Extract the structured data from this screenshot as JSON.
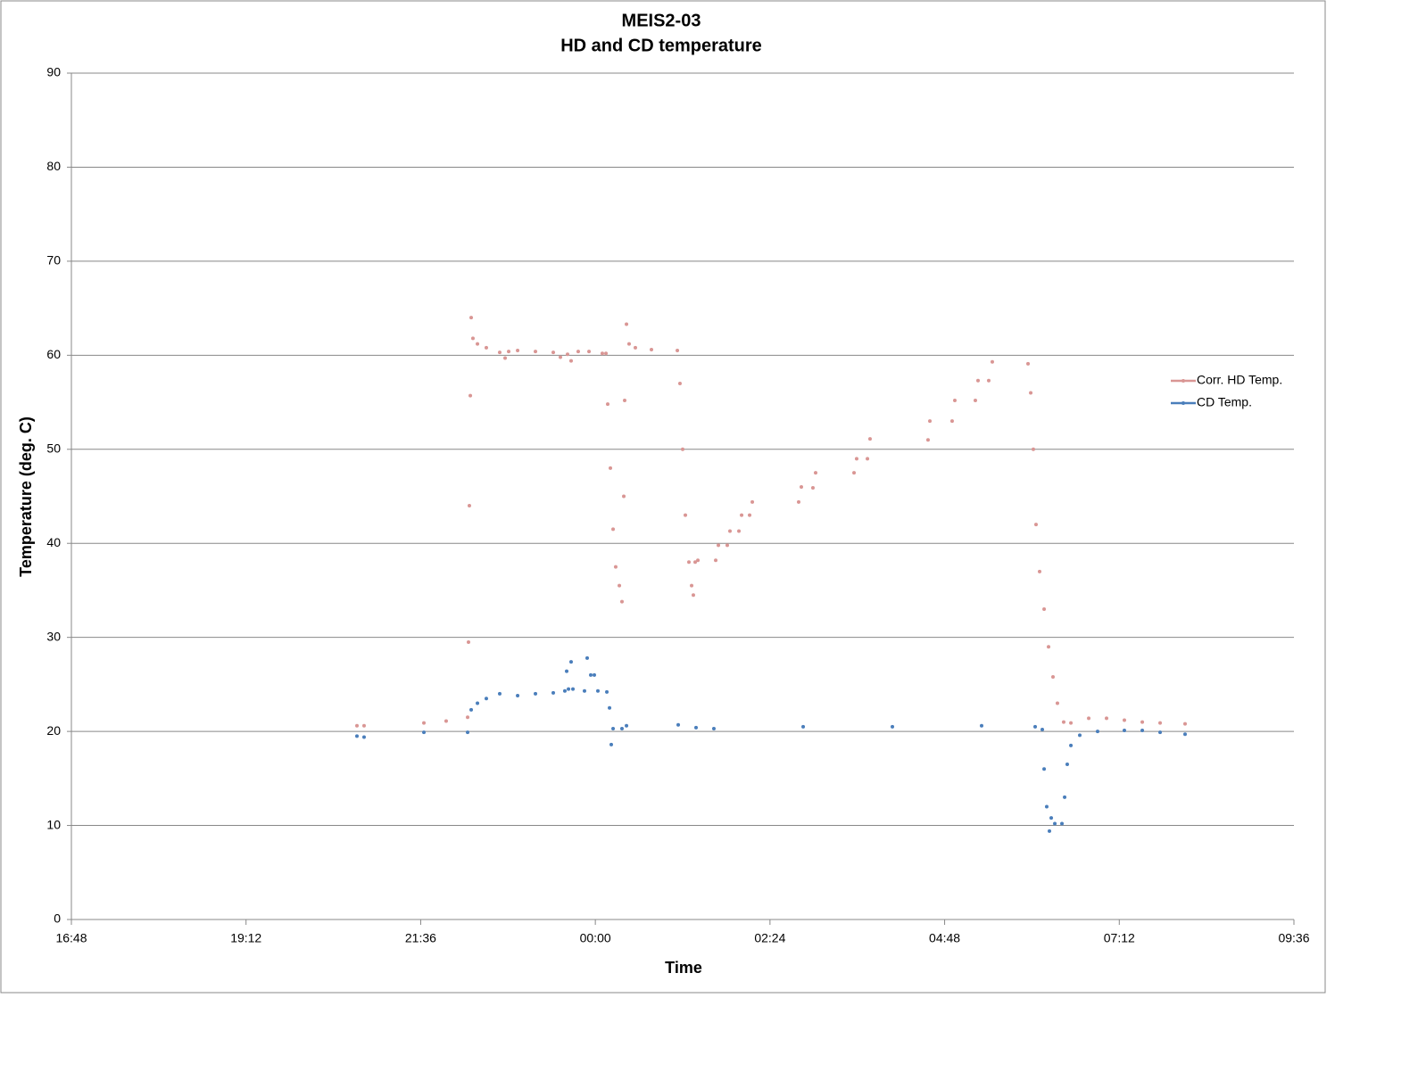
{
  "chart_data": {
    "type": "line",
    "title": "MEIS2-03",
    "subtitle": "HD and CD temperature",
    "x_label": "Time",
    "y_label": "Temperature (deg. C)",
    "xlim": [
      16.8,
      33.6
    ],
    "xticks": [
      {
        "value": 16.8,
        "label": "16:48"
      },
      {
        "value": 19.2,
        "label": "19:12"
      },
      {
        "value": 21.6,
        "label": "21:36"
      },
      {
        "value": 24,
        "label": "00:00"
      },
      {
        "value": 26.4,
        "label": "02:24"
      },
      {
        "value": 28.8,
        "label": "04:48"
      },
      {
        "value": 31.2,
        "label": "07:12"
      },
      {
        "value": 33.6,
        "label": "09:36"
      }
    ],
    "ylim": [
      0,
      90
    ],
    "yticks": [
      0,
      10,
      20,
      30,
      40,
      50,
      60,
      70,
      80,
      90
    ],
    "grid": true,
    "legend": "right",
    "series": [
      {
        "name": "Corr. HD Temp.",
        "color": "#d99694",
        "x": [
          20.724,
          20.822,
          21.644,
          21.95,
          22.245,
          22.257,
          22.269,
          22.282,
          22.294,
          22.318,
          22.38,
          22.502,
          22.686,
          22.76,
          22.809,
          22.932,
          23.177,
          23.422,
          23.52,
          23.618,
          23.667,
          23.765,
          23.913,
          24.096,
          24.146,
          24.17,
          24.207,
          24.244,
          24.28,
          24.33,
          24.366,
          24.391,
          24.403,
          24.428,
          24.464,
          24.55,
          24.771,
          25.127,
          25.163,
          25.2,
          25.237,
          25.286,
          25.323,
          25.347,
          25.372,
          25.409,
          25.654,
          25.691,
          25.813,
          25.85,
          25.973,
          26.01,
          26.12,
          26.157,
          26.794,
          26.831,
          26.99,
          27.027,
          27.555,
          27.591,
          27.739,
          27.775,
          28.572,
          28.597,
          28.903,
          28.94,
          29.222,
          29.259,
          29.406,
          29.455,
          29.946,
          29.983,
          30.019,
          30.056,
          30.105,
          30.167,
          30.228,
          30.289,
          30.35,
          30.436,
          30.535,
          30.78,
          31.025,
          31.27,
          31.516,
          31.761,
          32.104
        ],
        "values": [
          20.6,
          20.6,
          20.9,
          21.1,
          21.5,
          29.5,
          44,
          55.7,
          64,
          61.8,
          61.2,
          60.8,
          60.3,
          59.7,
          60.4,
          60.5,
          60.4,
          60.3,
          59.8,
          60.1,
          59.4,
          60.4,
          60.4,
          60.2,
          60.2,
          54.8,
          48,
          41.5,
          37.5,
          35.5,
          33.8,
          45,
          55.2,
          63.3,
          61.2,
          60.8,
          60.6,
          60.5,
          57,
          50,
          43,
          38,
          35.5,
          34.5,
          38,
          38.2,
          38.2,
          39.8,
          39.8,
          41.3,
          41.3,
          43,
          43,
          44.4,
          44.4,
          46,
          45.9,
          47.5,
          47.5,
          49,
          49,
          51.1,
          51,
          53,
          53,
          55.2,
          55.2,
          57.3,
          57.3,
          59.3,
          59.1,
          56,
          50,
          42,
          37,
          33,
          29,
          25.8,
          23,
          21,
          20.9,
          21.4,
          21.4,
          21.2,
          21,
          20.9,
          20.8
        ]
      },
      {
        "name": "CD Temp.",
        "color": "#4a7ebb",
        "x": [
          20.724,
          20.822,
          21.644,
          22.245,
          22.294,
          22.38,
          22.502,
          22.686,
          22.932,
          23.177,
          23.422,
          23.581,
          23.606,
          23.631,
          23.667,
          23.692,
          23.851,
          23.888,
          23.937,
          23.986,
          24.035,
          24.158,
          24.195,
          24.219,
          24.244,
          24.366,
          24.428,
          25.139,
          25.384,
          25.629,
          26.856,
          28.082,
          29.308,
          30.044,
          30.142,
          30.167,
          30.203,
          30.24,
          30.265,
          30.314,
          30.412,
          30.449,
          30.485,
          30.535,
          30.657,
          30.902,
          31.27,
          31.516,
          31.761,
          32.104
        ],
        "values": [
          19.5,
          19.4,
          19.9,
          19.9,
          22.3,
          23,
          23.5,
          24,
          23.8,
          24,
          24.1,
          24.3,
          26.4,
          24.5,
          27.4,
          24.5,
          24.3,
          27.8,
          26,
          26,
          24.3,
          24.2,
          22.5,
          18.6,
          20.3,
          20.3,
          20.6,
          20.7,
          20.4,
          20.3,
          20.5,
          20.5,
          20.6,
          20.5,
          20.2,
          16,
          12,
          9.4,
          10.8,
          10.2,
          10.2,
          13,
          16.5,
          18.5,
          19.6,
          20,
          20.1,
          20.1,
          19.9,
          19.7
        ]
      }
    ]
  }
}
